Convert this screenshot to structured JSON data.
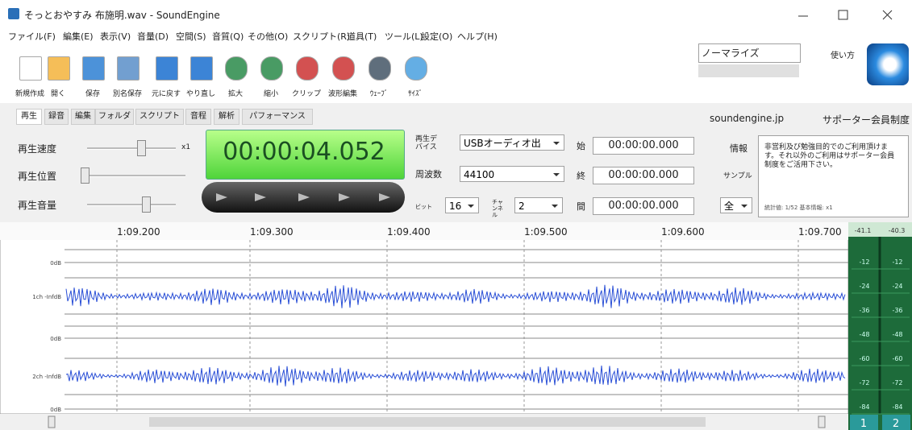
{
  "window": {
    "title": "そっとおやすみ 布施明.wav - SoundEngine"
  },
  "menu": [
    "ファイル(F)",
    "編集(E)",
    "表示(V)",
    "音量(D)",
    "空間(S)",
    "音質(Q)",
    "その他(O)",
    "スクリプト(R)",
    "道具(T)",
    "ツール(L)",
    "設定(O)",
    "ヘルプ(H)"
  ],
  "toolbar": [
    "新規作成",
    "開く",
    "保存",
    "別名保存",
    "元に戻す",
    "やり直し",
    "拡大",
    "縮小",
    "クリップ",
    "波形編集",
    "ｳｪｰﾌﾞ",
    "ｻｲｽﾞ"
  ],
  "effect": {
    "name": "ノーマライズ",
    "help": "使い方"
  },
  "tabs": [
    "再生",
    "録音",
    "編集",
    "フォルダ",
    "スクリプト",
    "音程",
    "解析",
    "パフォーマンス"
  ],
  "links": [
    "soundengine.jp",
    "サポーター会員制度"
  ],
  "controls": {
    "speed": "再生速度",
    "speed_value": "x1",
    "position": "再生位置",
    "volume": "再生音量",
    "time": "00:00:04.052"
  },
  "device": {
    "device_label": "再生デバイス",
    "device": "USBオーディオ出",
    "rate_label": "周波数",
    "rate": "44100",
    "bits_label": "ビット",
    "bits": "16",
    "channels_label": "チャンネル",
    "channels": "2"
  },
  "range": [
    {
      "label": "始",
      "value": "00:00:00.000"
    },
    {
      "label": "終",
      "value": "00:00:00.000"
    },
    {
      "label": "間",
      "value": "00:00:00.000"
    }
  ],
  "info": {
    "label": "情報",
    "sample": "サンプル",
    "select": "全",
    "text": "非営利及び勉強目的でのご利用頂けます。それ以外のご利用はサポーター会員制度をご活用下さい。",
    "footer": "統計値: 1/52 基本情報: x1"
  },
  "ruler": [
    "1:09.200",
    "1:09.300",
    "1:09.400",
    "1:09.500",
    "1:09.600",
    "1:09.700"
  ],
  "tracks": [
    "0dB",
    "1ch -InfdB",
    "0dB",
    "2ch -InfdB",
    "0dB"
  ],
  "meter": {
    "peaks": [
      "-41.1",
      "-40.3"
    ],
    "scale": [
      "-12",
      "-24",
      "-36",
      "-48",
      "-60",
      "-72",
      "-84"
    ],
    "channels": [
      "1",
      "2"
    ]
  }
}
